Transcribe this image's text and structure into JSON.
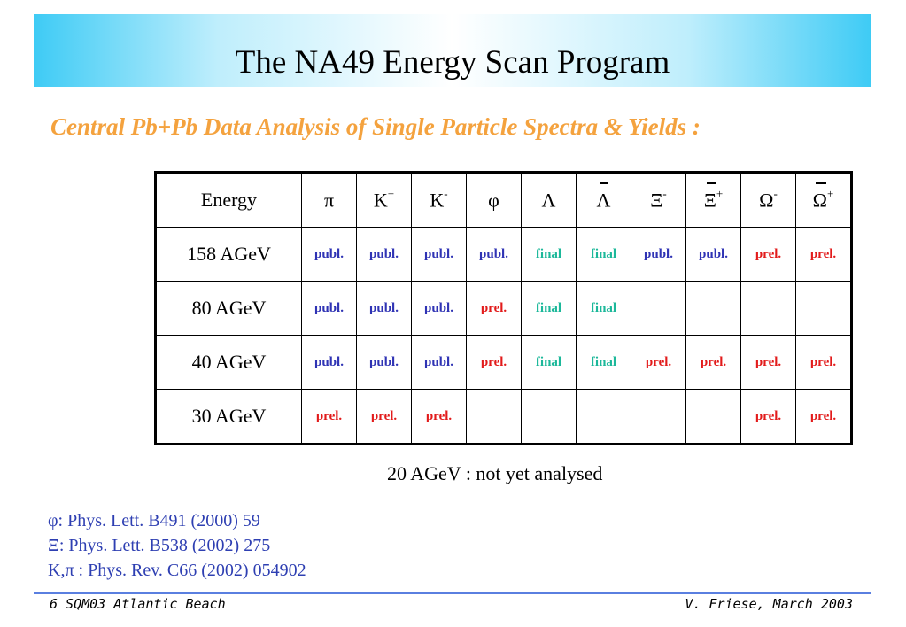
{
  "title": "The NA49 Energy Scan Program",
  "subtitle": "Central Pb+Pb Data Analysis of Single Particle Spectra & Yields :",
  "table": {
    "header_energy": "Energy",
    "columns": [
      {
        "base": "π",
        "sup": "",
        "bar": false
      },
      {
        "base": "K",
        "sup": "+",
        "bar": false
      },
      {
        "base": "K",
        "sup": "-",
        "bar": false
      },
      {
        "base": "φ",
        "sup": "",
        "bar": false
      },
      {
        "base": "Λ",
        "sup": "",
        "bar": false
      },
      {
        "base": "Λ",
        "sup": "",
        "bar": true
      },
      {
        "base": "Ξ",
        "sup": "-",
        "bar": false
      },
      {
        "base": "Ξ",
        "sup": "+",
        "bar": true
      },
      {
        "base": "Ω",
        "sup": "-",
        "bar": false
      },
      {
        "base": "Ω",
        "sup": "+",
        "bar": true
      }
    ],
    "rows": [
      {
        "energy": "158 AGeV",
        "cells": [
          "publ.",
          "publ.",
          "publ.",
          "publ.",
          "final",
          "final",
          "publ.",
          "publ.",
          "prel.",
          "prel."
        ]
      },
      {
        "energy": "80 AGeV",
        "cells": [
          "publ.",
          "publ.",
          "publ.",
          "prel.",
          "final",
          "final",
          "",
          "",
          "",
          ""
        ]
      },
      {
        "energy": "40 AGeV",
        "cells": [
          "publ.",
          "publ.",
          "publ.",
          "prel.",
          "final",
          "final",
          "prel.",
          "prel.",
          "prel.",
          "prel."
        ]
      },
      {
        "energy": "30 AGeV",
        "cells": [
          "prel.",
          "prel.",
          "prel.",
          "",
          "",
          "",
          "",
          "",
          "prel.",
          "prel."
        ]
      }
    ],
    "status_colors": {
      "publ.": "#2f33b4",
      "final": "#1cb89a",
      "prel.": "#e21b1b"
    }
  },
  "note": "20 AGeV : not yet analysed",
  "references": [
    "φ: Phys. Lett. B491 (2000) 59",
    "Ξ: Phys. Lett. B538 (2002) 275",
    "K,π : Phys. Rev. C66 (2002) 054902"
  ],
  "footer": {
    "left": "6  SQM03 Atlantic Beach",
    "right": "V. Friese, March 2003"
  }
}
